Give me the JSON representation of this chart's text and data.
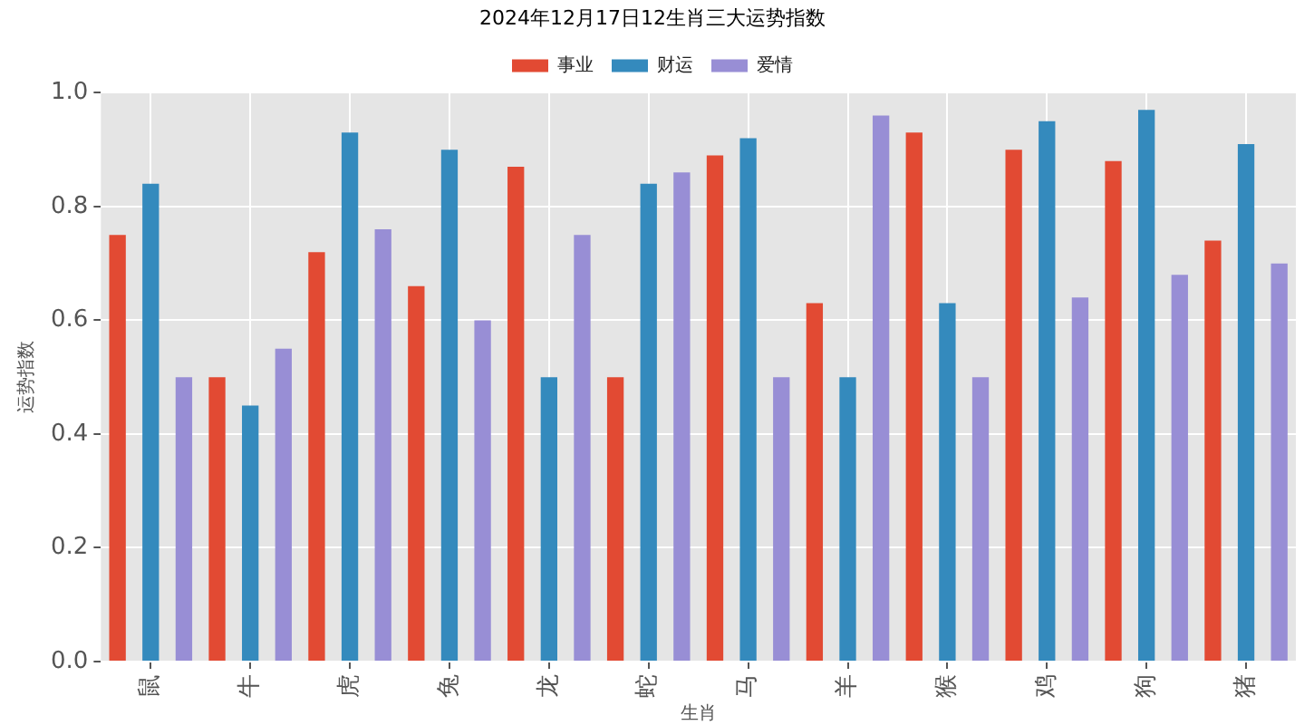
{
  "chart_data": {
    "type": "bar",
    "title": "2024年12月17日12生肖三大运势指数",
    "xlabel": "生肖",
    "ylabel": "运势指数",
    "categories": [
      "鼠",
      "牛",
      "虎",
      "兔",
      "龙",
      "蛇",
      "马",
      "羊",
      "猴",
      "鸡",
      "狗",
      "猪"
    ],
    "series": [
      {
        "name": "事业",
        "color": "#e24a33",
        "values": [
          0.75,
          0.5,
          0.72,
          0.66,
          0.87,
          0.5,
          0.89,
          0.63,
          0.93,
          0.9,
          0.88,
          0.74
        ]
      },
      {
        "name": "财运",
        "color": "#348abd",
        "values": [
          0.84,
          0.45,
          0.93,
          0.9,
          0.5,
          0.84,
          0.92,
          0.5,
          0.63,
          0.95,
          0.97,
          0.91
        ]
      },
      {
        "name": "爱情",
        "color": "#988ed5",
        "values": [
          0.5,
          0.55,
          0.76,
          0.6,
          0.75,
          0.86,
          0.5,
          0.96,
          0.5,
          0.64,
          0.68,
          0.7
        ]
      }
    ],
    "ylim": [
      0,
      1
    ],
    "yticks": [
      {
        "value": 0,
        "label": "0.0"
      },
      {
        "value": 0.2,
        "label": "0.2"
      },
      {
        "value": 0.4,
        "label": "0.4"
      },
      {
        "value": 0.6,
        "label": "0.6"
      },
      {
        "value": 0.8,
        "label": "0.8"
      },
      {
        "value": 1,
        "label": "1.0"
      }
    ],
    "grid": true,
    "legend": "top"
  }
}
